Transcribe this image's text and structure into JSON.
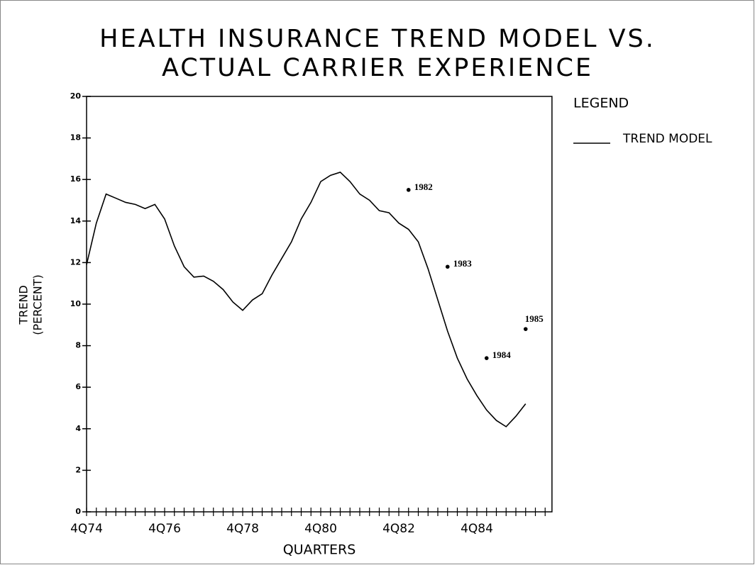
{
  "chart_data": {
    "type": "line",
    "title": [
      "HEALTH INSURANCE TREND MODEL VS.",
      "ACTUAL CARRIER EXPERIENCE"
    ],
    "xlabel": "QUARTERS",
    "ylabel": [
      "TREND",
      "(PERCENT)"
    ],
    "legend_title": "LEGEND",
    "categories": [
      "4Q74",
      null,
      null,
      null,
      null,
      null,
      null,
      null,
      "4Q76",
      null,
      null,
      null,
      null,
      null,
      null,
      null,
      "4Q78",
      null,
      null,
      null,
      null,
      null,
      null,
      null,
      "4Q80",
      null,
      null,
      null,
      null,
      null,
      null,
      null,
      "4Q82",
      null,
      null,
      null,
      null,
      null,
      null,
      null,
      "4Q84",
      null,
      null,
      null,
      null,
      null,
      null,
      null
    ],
    "series": [
      {
        "name": "TREND MODEL",
        "color": "#000000",
        "values": [
          11.9,
          13.9,
          15.3,
          15.1,
          14.9,
          14.8,
          14.6,
          14.8,
          14.1,
          12.8,
          11.8,
          11.3,
          11.35,
          11.1,
          10.7,
          10.1,
          9.7,
          10.2,
          10.5,
          11.4,
          12.2,
          13.0,
          14.1,
          14.9,
          15.9,
          16.2,
          16.35,
          15.9,
          15.3,
          15.0,
          14.5,
          14.4,
          13.9,
          13.6,
          13.0,
          11.7,
          10.2,
          8.7,
          7.4,
          6.4,
          5.6,
          4.9,
          4.4,
          4.1,
          4.6,
          5.2,
          null,
          null
        ]
      },
      {
        "color": "#000000",
        "values": [
          null,
          null,
          null,
          null,
          null,
          null,
          null,
          null,
          null,
          null,
          null,
          null,
          null,
          null,
          null,
          null,
          null,
          null,
          null,
          null,
          null,
          null,
          null,
          null,
          null,
          null,
          null,
          null,
          null,
          null,
          null,
          null,
          null,
          15.5,
          null,
          null,
          null,
          11.8,
          null,
          null,
          null,
          7.4,
          null,
          null,
          null,
          8.8,
          null,
          null
        ],
        "value_labels": [
          null,
          null,
          null,
          null,
          null,
          null,
          null,
          null,
          null,
          null,
          null,
          null,
          null,
          null,
          null,
          null,
          null,
          null,
          null,
          null,
          null,
          null,
          null,
          null,
          null,
          null,
          null,
          null,
          null,
          null,
          null,
          null,
          null,
          "1982",
          null,
          null,
          null,
          "1983",
          null,
          null,
          null,
          "1984",
          null,
          null,
          null,
          "1985",
          null,
          null
        ]
      }
    ],
    "ylim": [
      0,
      20
    ],
    "yticks": [
      0,
      2,
      4,
      6,
      8,
      10,
      12,
      14,
      16,
      18,
      20
    ]
  }
}
